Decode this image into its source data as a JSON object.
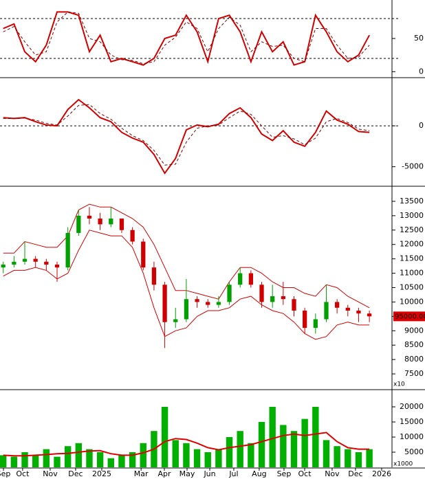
{
  "chart_data": [
    {
      "type": "line",
      "xlim": [
        -0.3,
        36.1
      ],
      "ylim": [
        -8,
        108
      ],
      "yticks": [
        0,
        50
      ],
      "reference_lines": [
        80,
        20
      ],
      "series": [
        {
          "color": "#d00000",
          "style": "solid",
          "values": [
            65,
            72,
            30,
            15,
            40,
            90,
            90,
            85,
            30,
            55,
            15,
            20,
            15,
            10,
            20,
            50,
            55,
            85,
            60,
            15,
            80,
            85,
            60,
            15,
            60,
            30,
            45,
            10,
            15,
            85,
            60,
            30,
            15,
            25,
            55
          ]
        },
        {
          "color": "#800000",
          "style": "dashed",
          "values": [
            60,
            68,
            45,
            25,
            30,
            75,
            90,
            88,
            50,
            45,
            25,
            18,
            17,
            12,
            15,
            40,
            52,
            75,
            65,
            30,
            65,
            82,
            70,
            30,
            45,
            38,
            40,
            20,
            15,
            65,
            65,
            40,
            20,
            22,
            40
          ]
        }
      ]
    },
    {
      "type": "line",
      "xlim": [
        -0.3,
        36.1
      ],
      "ylim": [
        -7300,
        5800
      ],
      "yticks": [
        0,
        -5000
      ],
      "reference_lines": [
        0
      ],
      "series": [
        {
          "color": "#d00000",
          "style": "solid",
          "values": [
            1000,
            900,
            1000,
            500,
            100,
            0,
            2000,
            3200,
            2200,
            1000,
            500,
            -800,
            -1500,
            -2000,
            -3500,
            -5800,
            -4000,
            -500,
            100,
            -100,
            200,
            1500,
            2200,
            1000,
            -1000,
            -1800,
            -600,
            -2000,
            -2500,
            -800,
            1800,
            700,
            200,
            -700,
            -800
          ]
        },
        {
          "color": "#800000",
          "style": "dashed",
          "values": [
            900,
            900,
            950,
            700,
            300,
            100,
            1200,
            2500,
            2600,
            1500,
            800,
            -300,
            -1200,
            -1800,
            -3000,
            -4800,
            -4700,
            -2000,
            -300,
            0,
            100,
            1000,
            1800,
            1400,
            0,
            -1400,
            -1200,
            -1600,
            -2300,
            -1500,
            500,
            900,
            400,
            -400,
            -600
          ]
        }
      ]
    },
    {
      "type": "candlestick",
      "xlim": [
        -0.3,
        36.1
      ],
      "ylim": [
        7000,
        14000
      ],
      "yticks": [
        7500,
        8000,
        8500,
        9000,
        9500,
        10000,
        10500,
        11000,
        11500,
        12000,
        12500,
        13000,
        13500
      ],
      "multiplier": "x10",
      "last_price": {
        "value": 9500,
        "label": "95000.00",
        "color": "#e00000"
      },
      "up_color": "#00a000",
      "down_color": "#d00000",
      "open": [
        11200,
        11300,
        11400,
        11500,
        11400,
        11300,
        11200,
        12400,
        13000,
        12900,
        12700,
        12900,
        12500,
        12100,
        11200,
        10600,
        9300,
        9400,
        10100,
        10000,
        9900,
        10000,
        10600,
        11000,
        10600,
        10000,
        10200,
        10100,
        9700,
        9100,
        9400,
        10000,
        9800,
        9700,
        9600
      ],
      "high": [
        11400,
        11600,
        12100,
        11600,
        11500,
        11400,
        12600,
        13200,
        13300,
        13100,
        13300,
        12900,
        12600,
        12200,
        11400,
        10700,
        9800,
        10800,
        10200,
        10100,
        10200,
        10700,
        11200,
        11100,
        10700,
        10600,
        10700,
        10200,
        9800,
        9600,
        10600,
        10100,
        9900,
        9800,
        9700
      ],
      "low": [
        11000,
        11200,
        11300,
        11200,
        11100,
        10700,
        11100,
        12300,
        12700,
        12500,
        12600,
        12400,
        12000,
        11100,
        10400,
        8400,
        9100,
        9300,
        9800,
        9800,
        9800,
        9900,
        10500,
        10500,
        9800,
        9800,
        9900,
        9500,
        8900,
        8900,
        9300,
        9600,
        9500,
        9300,
        9300
      ],
      "close": [
        11300,
        11400,
        11500,
        11400,
        11300,
        11200,
        12400,
        13000,
        12900,
        12700,
        12900,
        12500,
        12100,
        11200,
        10600,
        9300,
        9400,
        10100,
        10000,
        9900,
        10000,
        10600,
        11000,
        10600,
        10000,
        10200,
        10100,
        9700,
        9100,
        9400,
        10000,
        9800,
        9700,
        9600,
        9500
      ],
      "bands": [
        {
          "color": "#d00000",
          "values": [
            11700,
            11700,
            12100,
            12000,
            11900,
            11900,
            12300,
            13200,
            13400,
            13300,
            13300,
            13100,
            12900,
            12600,
            12000,
            11200,
            10400,
            10400,
            10300,
            10200,
            10100,
            10700,
            11200,
            11200,
            11000,
            10700,
            10500,
            10500,
            10300,
            10200,
            10600,
            10500,
            10200,
            10000,
            9800
          ]
        },
        {
          "color": "#d00000",
          "values": [
            10900,
            11100,
            11100,
            11200,
            11100,
            10800,
            11000,
            11800,
            12500,
            12400,
            12300,
            12300,
            11900,
            11000,
            9800,
            8800,
            9000,
            9100,
            9500,
            9700,
            9700,
            9800,
            10100,
            10200,
            9900,
            9700,
            9600,
            9300,
            8900,
            8700,
            8800,
            9200,
            9300,
            9200,
            9200
          ]
        }
      ]
    },
    {
      "type": "bar",
      "xlim": [
        -0.3,
        36.1
      ],
      "ylim": [
        0,
        25000
      ],
      "yticks": [
        5000,
        10000,
        15000,
        20000
      ],
      "multiplier": "x1000",
      "color": "#00b000",
      "values": [
        4000,
        3500,
        5000,
        4000,
        6000,
        3500,
        7000,
        8000,
        6000,
        5000,
        3000,
        4000,
        5000,
        8000,
        12000,
        20000,
        9000,
        8000,
        6000,
        5000,
        6000,
        10000,
        12000,
        8000,
        15000,
        20000,
        14000,
        12000,
        16000,
        20000,
        9000,
        7000,
        6000,
        5000,
        6000
      ],
      "moving_average": {
        "color": "#e00000",
        "values": [
          4000,
          3800,
          3800,
          4000,
          4200,
          4500,
          4600,
          5000,
          5400,
          5500,
          4500,
          4000,
          4000,
          4800,
          6000,
          8500,
          9500,
          9200,
          8000,
          6500,
          5800,
          6500,
          7000,
          7500,
          8500,
          9500,
          10500,
          11000,
          10500,
          11000,
          11500,
          8500,
          6500,
          6000,
          6000
        ]
      },
      "xticks": [
        {
          "value": 0.02,
          "label": "Sep"
        },
        {
          "value": 1.8,
          "label": "Oct"
        },
        {
          "value": 4.36,
          "label": "Nov"
        },
        {
          "value": 6.72,
          "label": "Dec"
        },
        {
          "value": 9.15,
          "label": "2025"
        },
        {
          "value": 12.8,
          "label": "Mar"
        },
        {
          "value": 14.96,
          "label": "Apr"
        },
        {
          "value": 17.07,
          "label": "May"
        },
        {
          "value": 19.18,
          "label": "Jun"
        },
        {
          "value": 21.41,
          "label": "Jul"
        },
        {
          "value": 23.77,
          "label": "Aug"
        },
        {
          "value": 26.07,
          "label": "Sep"
        },
        {
          "value": 27.99,
          "label": "Oct"
        },
        {
          "value": 30.54,
          "label": "Nov"
        },
        {
          "value": 32.71,
          "label": "Dec"
        },
        {
          "value": 35.14,
          "label": "2026"
        }
      ]
    }
  ]
}
